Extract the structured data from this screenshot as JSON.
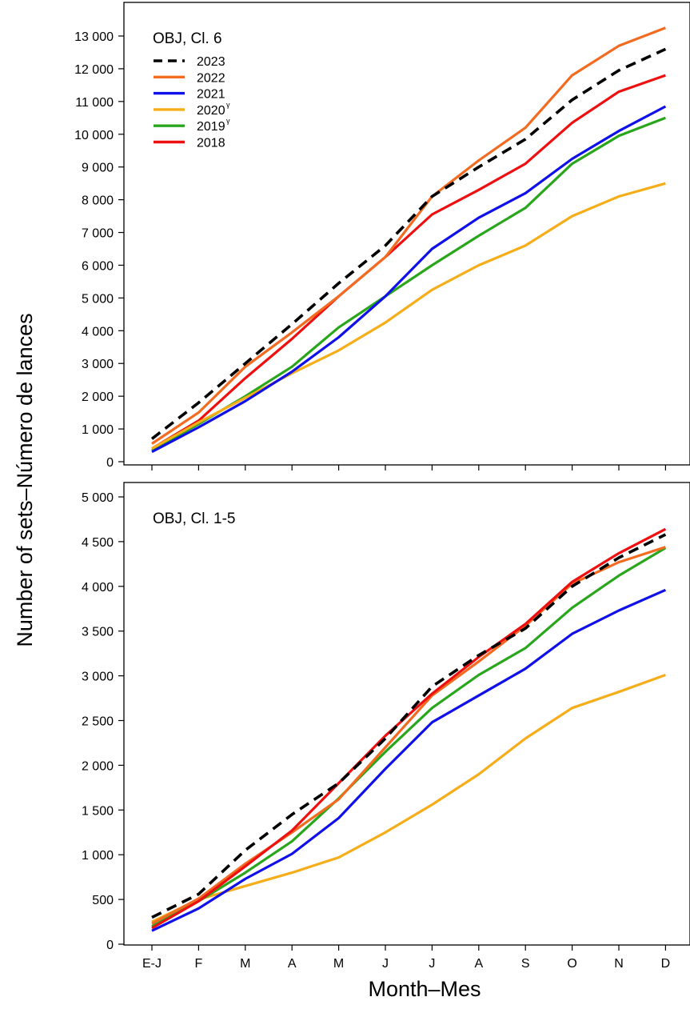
{
  "figure": {
    "ylabel": "Number of sets–Número de lances",
    "xlabel": "Month–Mes"
  },
  "colors": {
    "2023": "#000000",
    "2022": "#f26b21",
    "2021": "#1010e8",
    "2020": "#f5ae19",
    "2019": "#2aa61d",
    "2018": "#ee1010"
  },
  "chart_data": [
    {
      "type": "line",
      "title": "OBJ, Cl. 6",
      "categories": [
        "E-J",
        "F",
        "M",
        "A",
        "M",
        "J",
        "J",
        "A",
        "S",
        "O",
        "N",
        "D"
      ],
      "ylim": [
        0,
        13000
      ],
      "yticks": [
        0,
        1000,
        2000,
        3000,
        4000,
        5000,
        6000,
        7000,
        8000,
        9000,
        10000,
        11000,
        12000,
        13000
      ],
      "ytick_labels": [
        "0",
        "1 000",
        "2 000",
        "3 000",
        "4 000",
        "5 000",
        "6 000",
        "7 000",
        "8 000",
        "9 000",
        "10 000",
        "11 000",
        "12 000",
        "13 000"
      ],
      "legend": [
        {
          "key": "2023",
          "label": "2023",
          "dashed": true
        },
        {
          "key": "2022",
          "label": "2022"
        },
        {
          "key": "2021",
          "label": "2021"
        },
        {
          "key": "2020",
          "label": "2020",
          "sup": "γ"
        },
        {
          "key": "2019",
          "label": "2019",
          "sup": "γ"
        },
        {
          "key": "2018",
          "label": "2018"
        }
      ],
      "series": [
        {
          "name": "2018",
          "key": "2018",
          "values": [
            400,
            1250,
            2550,
            3750,
            5050,
            6250,
            7550,
            8300,
            9100,
            10350,
            11300,
            11800
          ]
        },
        {
          "name": "2019",
          "key": "2019",
          "values": [
            350,
            1150,
            2000,
            2900,
            4100,
            5050,
            6000,
            6900,
            7750,
            9100,
            9950,
            10500
          ]
        },
        {
          "name": "2020",
          "key": "2020",
          "values": [
            400,
            1200,
            1950,
            2700,
            3400,
            4250,
            5250,
            6000,
            6600,
            7500,
            8100,
            8500
          ]
        },
        {
          "name": "2021",
          "key": "2021",
          "values": [
            300,
            1050,
            1850,
            2750,
            3800,
            5050,
            6500,
            7450,
            8200,
            9250,
            10100,
            10850
          ]
        },
        {
          "name": "2022",
          "key": "2022",
          "values": [
            550,
            1500,
            2900,
            3950,
            5050,
            6250,
            8100,
            9200,
            10200,
            11800,
            12700,
            13250
          ]
        },
        {
          "name": "2023",
          "key": "2023",
          "dashed": true,
          "values": [
            700,
            1800,
            3000,
            4200,
            5450,
            6600,
            8100,
            9000,
            9850,
            11050,
            11950,
            12600
          ]
        }
      ]
    },
    {
      "type": "line",
      "title": "OBJ, Cl. 1-5",
      "categories": [
        "E-J",
        "F",
        "M",
        "A",
        "M",
        "J",
        "J",
        "A",
        "S",
        "O",
        "N",
        "D"
      ],
      "ylim": [
        0,
        5000
      ],
      "yticks": [
        0,
        500,
        1000,
        1500,
        2000,
        2500,
        3000,
        3500,
        4000,
        4500,
        5000
      ],
      "ytick_labels": [
        "0",
        "500",
        "1 000",
        "1 500",
        "2 000",
        "2 500",
        "3 000",
        "3 500",
        "4 000",
        "4 500",
        "5 000"
      ],
      "series": [
        {
          "name": "2020",
          "key": "2020",
          "values": [
            250,
            500,
            650,
            800,
            970,
            1250,
            1560,
            1900,
            2300,
            2640,
            2820,
            3010
          ]
        },
        {
          "name": "2021",
          "key": "2021",
          "values": [
            150,
            400,
            730,
            1010,
            1410,
            1960,
            2480,
            2780,
            3080,
            3470,
            3730,
            3960
          ]
        },
        {
          "name": "2019",
          "key": "2019",
          "values": [
            200,
            480,
            800,
            1150,
            1630,
            2150,
            2640,
            3010,
            3310,
            3760,
            4120,
            4430
          ]
        },
        {
          "name": "2022",
          "key": "2022",
          "values": [
            230,
            510,
            900,
            1250,
            1620,
            2200,
            2780,
            3160,
            3560,
            4030,
            4270,
            4440
          ]
        },
        {
          "name": "2018",
          "key": "2018",
          "values": [
            180,
            480,
            870,
            1270,
            1800,
            2330,
            2800,
            3210,
            3580,
            4050,
            4370,
            4640
          ]
        },
        {
          "name": "2023",
          "key": "2023",
          "dashed": true,
          "values": [
            300,
            560,
            1050,
            1450,
            1800,
            2300,
            2880,
            3230,
            3530,
            4000,
            4320,
            4580
          ]
        }
      ]
    }
  ]
}
